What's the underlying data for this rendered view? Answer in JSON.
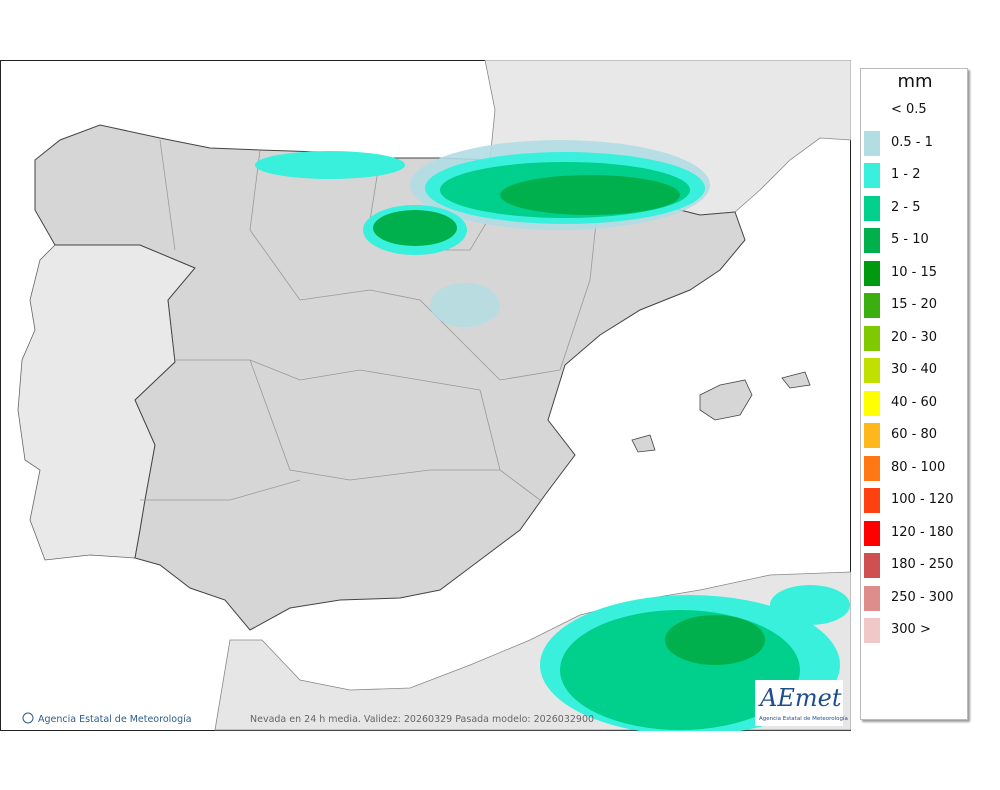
{
  "legend": {
    "unit": "mm",
    "items": [
      {
        "label": "< 0.5"
      },
      {
        "label": "0.5 - 1",
        "color": "#b1dde3"
      },
      {
        "label": "1 - 2",
        "color": "#38f0dc"
      },
      {
        "label": "2 - 5",
        "color": "#00d08c"
      },
      {
        "label": "5 - 10",
        "color": "#00b04c"
      },
      {
        "label": "10 - 15",
        "color": "#009a10"
      },
      {
        "label": "15 - 20",
        "color": "#3caf10"
      },
      {
        "label": "20 - 30",
        "color": "#80c800"
      },
      {
        "label": "30 - 40",
        "color": "#c0e000"
      },
      {
        "label": "40 - 60",
        "color": "#ffff00"
      },
      {
        "label": "60 - 80",
        "color": "#ffb81c"
      },
      {
        "label": "80 - 100",
        "color": "#ff7814"
      },
      {
        "label": "100 - 120",
        "color": "#ff4010"
      },
      {
        "label": "120 - 180",
        "color": "#ff0000"
      },
      {
        "label": "180 - 250",
        "color": "#cf5050"
      },
      {
        "label": "250 - 300",
        "color": "#df8c8c"
      },
      {
        "label": "300 >",
        "color": "#f0c8c8"
      }
    ]
  },
  "footer": {
    "credit": "Agencia Estatal de Meteorología",
    "caption": "Nevada en 24 h media. Validez: 20260329 Pasada modelo: 2026032900"
  },
  "logo": {
    "text": "AEmet",
    "subtitle": "Agencia Estatal de Meteorología"
  }
}
